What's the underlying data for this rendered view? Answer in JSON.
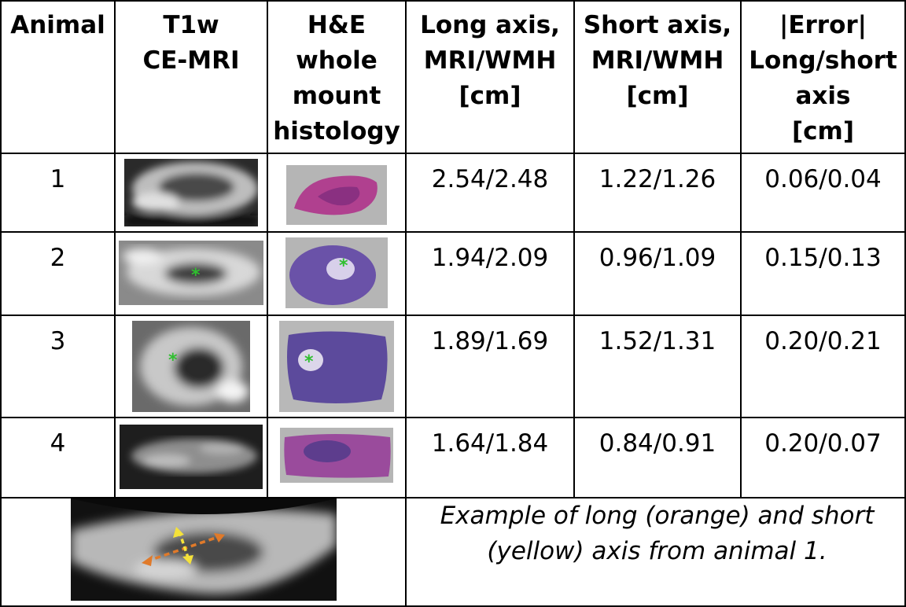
{
  "headers": {
    "animal": "Animal",
    "mri": [
      "T1w",
      "CE-MRI"
    ],
    "he": [
      "H&E",
      "whole",
      "mount",
      "histology"
    ],
    "long_axis": [
      "Long axis,",
      "MRI/WMH",
      "[cm]"
    ],
    "short_axis": [
      "Short axis,",
      "MRI/WMH",
      "[cm]"
    ],
    "error": [
      "|Error|",
      "Long/short",
      "axis",
      "[cm]"
    ]
  },
  "rows": [
    {
      "animal": "1",
      "long": "2.54/2.48",
      "short": "1.22/1.26",
      "error": "0.06/0.04",
      "mri_image": "mri-animal-1",
      "he_image": "histology-animal-1"
    },
    {
      "animal": "2",
      "long": "1.94/2.09",
      "short": "0.96/1.09",
      "error": "0.15/0.13",
      "mri_image": "mri-animal-2",
      "he_image": "histology-animal-2"
    },
    {
      "animal": "3",
      "long": "1.89/1.69",
      "short": "1.52/1.31",
      "error": "0.20/0.21",
      "mri_image": "mri-animal-3",
      "he_image": "histology-animal-3"
    },
    {
      "animal": "4",
      "long": "1.64/1.84",
      "short": "0.84/0.91",
      "error": "0.20/0.07",
      "mri_image": "mri-animal-4",
      "he_image": "histology-animal-4"
    }
  ],
  "example": {
    "caption": "Example of long (orange) and short (yellow) axis from animal 1.",
    "image": "mri-axis-example",
    "long_axis_color": "#e07a2a",
    "short_axis_color": "#f5e23a"
  },
  "marker": {
    "symbol": "*",
    "color": "#2fbf2f"
  }
}
